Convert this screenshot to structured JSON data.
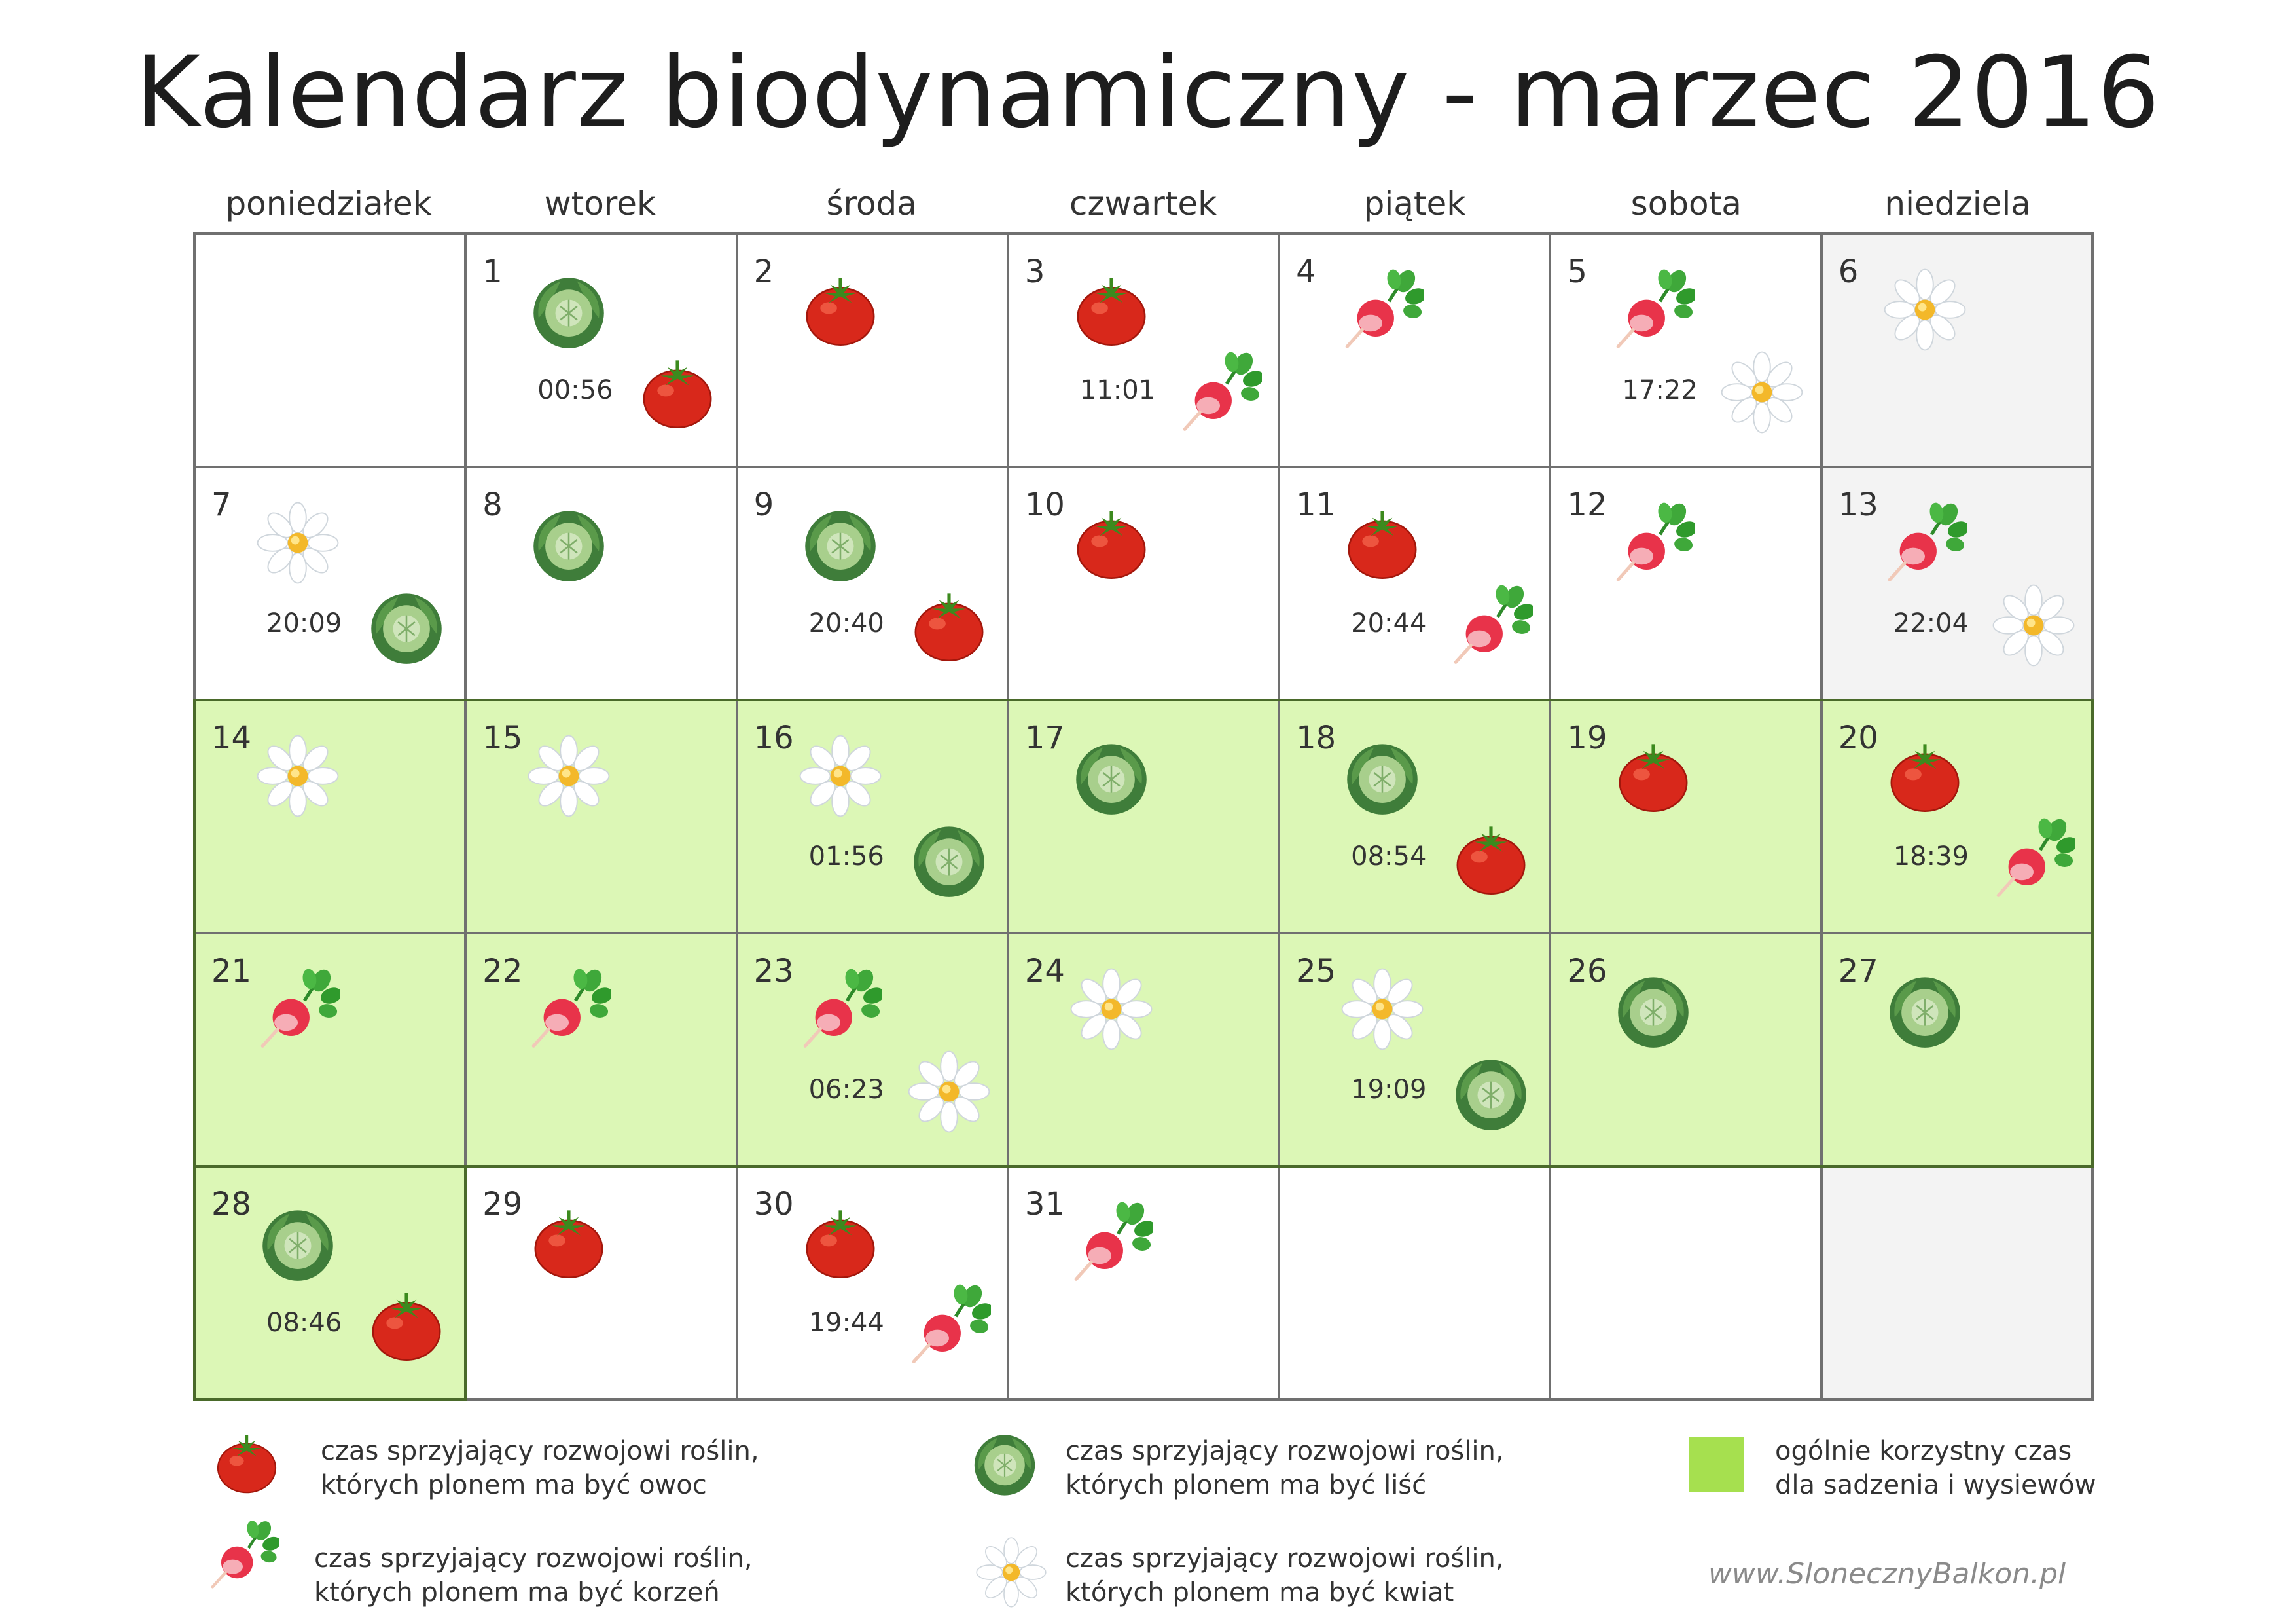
{
  "title": "Kalendarz biodynamiczny - marzec 2016",
  "weekdays": [
    "poniedziałek",
    "wtorek",
    "środa",
    "czwartek",
    "piątek",
    "sobota",
    "niedziela"
  ],
  "colors": {
    "green_cell": "#dcf7b6",
    "gray_cell": "#f3f3f3",
    "legend_green": "#a6e04f",
    "grid_line": "#707070"
  },
  "icon_names": {
    "tomato": "tomato-icon",
    "cabbage": "cabbage-icon",
    "radish": "radish-icon",
    "daisy": "daisy-icon"
  },
  "days": [
    {
      "num": "",
      "bg": "white",
      "icons": [],
      "time": ""
    },
    {
      "num": "1",
      "bg": "white",
      "icons": [
        "cabbage",
        "tomato"
      ],
      "time": "00:56"
    },
    {
      "num": "2",
      "bg": "white",
      "icons": [
        "tomato"
      ],
      "time": ""
    },
    {
      "num": "3",
      "bg": "white",
      "icons": [
        "tomato",
        "radish"
      ],
      "time": "11:01"
    },
    {
      "num": "4",
      "bg": "white",
      "icons": [
        "radish"
      ],
      "time": ""
    },
    {
      "num": "5",
      "bg": "white",
      "icons": [
        "radish",
        "daisy"
      ],
      "time": "17:22"
    },
    {
      "num": "6",
      "bg": "gray",
      "icons": [
        "daisy"
      ],
      "time": ""
    },
    {
      "num": "7",
      "bg": "white",
      "icons": [
        "daisy",
        "cabbage"
      ],
      "time": "20:09"
    },
    {
      "num": "8",
      "bg": "white",
      "icons": [
        "cabbage"
      ],
      "time": ""
    },
    {
      "num": "9",
      "bg": "white",
      "icons": [
        "cabbage",
        "tomato"
      ],
      "time": "20:40"
    },
    {
      "num": "10",
      "bg": "white",
      "icons": [
        "tomato"
      ],
      "time": ""
    },
    {
      "num": "11",
      "bg": "white",
      "icons": [
        "tomato",
        "radish"
      ],
      "time": "20:44"
    },
    {
      "num": "12",
      "bg": "white",
      "icons": [
        "radish"
      ],
      "time": ""
    },
    {
      "num": "13",
      "bg": "gray",
      "icons": [
        "radish",
        "daisy"
      ],
      "time": "22:04"
    },
    {
      "num": "14",
      "bg": "green",
      "icons": [
        "daisy"
      ],
      "time": ""
    },
    {
      "num": "15",
      "bg": "green",
      "icons": [
        "daisy"
      ],
      "time": ""
    },
    {
      "num": "16",
      "bg": "green",
      "icons": [
        "daisy",
        "cabbage"
      ],
      "time": "01:56"
    },
    {
      "num": "17",
      "bg": "green",
      "icons": [
        "cabbage"
      ],
      "time": ""
    },
    {
      "num": "18",
      "bg": "green",
      "icons": [
        "cabbage",
        "tomato"
      ],
      "time": "08:54"
    },
    {
      "num": "19",
      "bg": "green",
      "icons": [
        "tomato"
      ],
      "time": ""
    },
    {
      "num": "20",
      "bg": "green",
      "icons": [
        "tomato",
        "radish"
      ],
      "time": "18:39"
    },
    {
      "num": "21",
      "bg": "green",
      "icons": [
        "radish"
      ],
      "time": ""
    },
    {
      "num": "22",
      "bg": "green",
      "icons": [
        "radish"
      ],
      "time": ""
    },
    {
      "num": "23",
      "bg": "green",
      "icons": [
        "radish",
        "daisy"
      ],
      "time": "06:23"
    },
    {
      "num": "24",
      "bg": "green",
      "icons": [
        "daisy"
      ],
      "time": ""
    },
    {
      "num": "25",
      "bg": "green",
      "icons": [
        "daisy",
        "cabbage"
      ],
      "time": "19:09"
    },
    {
      "num": "26",
      "bg": "green",
      "icons": [
        "cabbage"
      ],
      "time": ""
    },
    {
      "num": "27",
      "bg": "green",
      "icons": [
        "cabbage"
      ],
      "time": ""
    },
    {
      "num": "28",
      "bg": "green",
      "icons": [
        "cabbage",
        "tomato"
      ],
      "time": "08:46"
    },
    {
      "num": "29",
      "bg": "white",
      "icons": [
        "tomato"
      ],
      "time": ""
    },
    {
      "num": "30",
      "bg": "white",
      "icons": [
        "tomato",
        "radish"
      ],
      "time": "19:44"
    },
    {
      "num": "31",
      "bg": "white",
      "icons": [
        "radish"
      ],
      "time": ""
    },
    {
      "num": "",
      "bg": "white",
      "icons": [],
      "time": ""
    },
    {
      "num": "",
      "bg": "white",
      "icons": [],
      "time": ""
    },
    {
      "num": "",
      "bg": "gray",
      "icons": [],
      "time": ""
    }
  ],
  "legend": {
    "fruit": {
      "icon": "tomato",
      "line1": "czas sprzyjający rozwojowi roślin,",
      "line2": "których plonem ma być owoc"
    },
    "leaf": {
      "icon": "cabbage",
      "line1": "czas sprzyjający rozwojowi roślin,",
      "line2": "których plonem ma być liść"
    },
    "general": {
      "line1": "ogólnie korzystny czas",
      "line2": "dla sadzenia i wysiewów"
    },
    "root": {
      "icon": "radish",
      "line1": "czas sprzyjający rozwojowi roślin,",
      "line2": "których plonem ma być korzeń"
    },
    "flower": {
      "icon": "daisy",
      "line1": "czas sprzyjający rozwojowi roślin,",
      "line2": "których plonem ma być kwiat"
    }
  },
  "website": "www.SlonecznyBalkon.pl"
}
